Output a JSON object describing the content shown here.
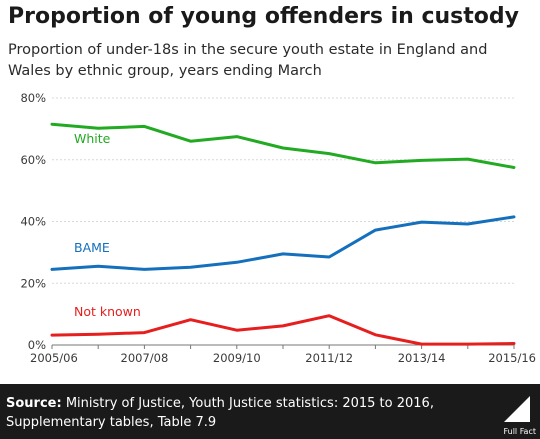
{
  "title": "Proportion of young offenders in custody",
  "subtitle": "Proportion of under-18s in the secure youth estate in England and Wales by ethnic group, years ending March",
  "footer": {
    "source_label": "Source:",
    "source_text": "Ministry of Justice, Youth Justice statistics: 2015 to 2016, Supplementary tables, Table 7.9",
    "logo_text": "Full Fact"
  },
  "colors": {
    "white": "#22aa22",
    "bame": "#1470bd",
    "not_known": "#e61e1e",
    "grid": "#d9d9d9",
    "axis_text": "#3a3a3a"
  },
  "chart_data": {
    "type": "line",
    "x": [
      "2005/06",
      "2006/07",
      "2007/08",
      "2008/09",
      "2009/10",
      "2010/11",
      "2011/12",
      "2012/13",
      "2013/14",
      "2014/15",
      "2015/16"
    ],
    "x_tick_labels": [
      "2005/06",
      "2007/08",
      "2009/10",
      "2011/12",
      "2013/14",
      "2015/16"
    ],
    "y_tick_labels": [
      "0%",
      "20%",
      "40%",
      "60%",
      "80%"
    ],
    "ylim": [
      0,
      80
    ],
    "grid": true,
    "series": [
      {
        "name": "White",
        "color_key": "white",
        "values": [
          71.5,
          70.2,
          70.8,
          66.0,
          67.5,
          63.8,
          62.0,
          59.0,
          59.8,
          60.2,
          57.5
        ]
      },
      {
        "name": "BAME",
        "color_key": "bame",
        "values": [
          24.5,
          25.5,
          24.5,
          25.2,
          26.8,
          29.5,
          28.5,
          37.2,
          39.8,
          39.2,
          41.5
        ]
      },
      {
        "name": "Not known",
        "color_key": "not_known",
        "values": [
          3.2,
          3.5,
          4.0,
          8.2,
          4.8,
          6.2,
          9.5,
          3.3,
          0.3,
          0.3,
          0.5
        ]
      }
    ]
  }
}
